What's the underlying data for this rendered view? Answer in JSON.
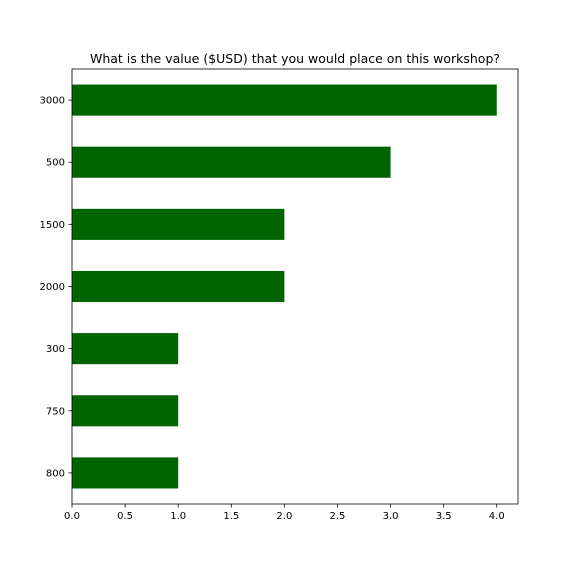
{
  "chart_data": {
    "type": "bar",
    "orientation": "horizontal",
    "title": "What is the value ($USD) that you would place on this workshop?",
    "xlabel": "",
    "ylabel": "",
    "categories": [
      "3000",
      "500",
      "1500",
      "2000",
      "300",
      "750",
      "800"
    ],
    "values": [
      4,
      3,
      2,
      2,
      1,
      1,
      1
    ],
    "xlim": [
      0,
      4.2
    ],
    "xticks": [
      "0.0",
      "0.5",
      "1.0",
      "1.5",
      "2.0",
      "2.5",
      "3.0",
      "3.5",
      "4.0"
    ],
    "grid": false,
    "legend": "none",
    "bar_color": "#006400"
  }
}
